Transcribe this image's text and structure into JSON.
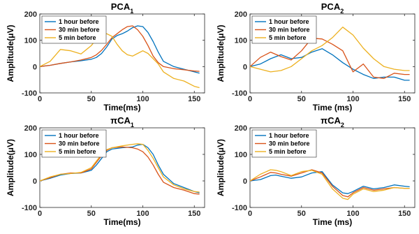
{
  "colors": {
    "s1": "#0072BD",
    "s2": "#D95319",
    "s3": "#EDB120",
    "axis": "#262626"
  },
  "chart_data": [
    {
      "type": "line",
      "title": "PCA",
      "title_sub": "1",
      "title_prefix": "",
      "xlabel": "Time(ms)",
      "ylabel": "Amplitude(μV)",
      "xlim": [
        0,
        160
      ],
      "ylim": [
        -100,
        200
      ],
      "xticks": [
        "0",
        "50",
        "100",
        "150"
      ],
      "yticks": [
        "-100",
        "0",
        "100",
        "200"
      ],
      "legend": "top-left",
      "x": [
        0,
        10,
        20,
        30,
        40,
        50,
        55,
        60,
        65,
        70,
        75,
        80,
        85,
        90,
        95,
        100,
        105,
        110,
        115,
        120,
        130,
        140,
        150,
        155
      ],
      "series": [
        {
          "name": "1 hour before",
          "values": [
            0,
            5,
            12,
            18,
            22,
            28,
            35,
            50,
            75,
            105,
            118,
            125,
            135,
            148,
            155,
            152,
            130,
            95,
            55,
            20,
            0,
            -10,
            -20,
            -25
          ]
        },
        {
          "name": "30 min before",
          "values": [
            0,
            5,
            12,
            18,
            25,
            35,
            45,
            62,
            85,
            110,
            125,
            140,
            152,
            155,
            140,
            115,
            80,
            40,
            15,
            0,
            -8,
            -12,
            -17,
            -18
          ]
        },
        {
          "name": "5 min before",
          "values": [
            0,
            20,
            65,
            60,
            48,
            80,
            105,
            118,
            125,
            115,
            85,
            60,
            45,
            40,
            50,
            60,
            50,
            30,
            10,
            -20,
            -45,
            -55,
            -75,
            -80
          ]
        }
      ]
    },
    {
      "type": "line",
      "title": "PCA",
      "title_sub": "2",
      "title_prefix": "",
      "xlabel": "Time (ms)",
      "ylabel": "Amplitude(μV)",
      "xlim": [
        0,
        160
      ],
      "ylim": [
        -100,
        200
      ],
      "xticks": [
        "0",
        "50",
        "100",
        "150"
      ],
      "yticks": [
        "-100",
        "0",
        "100",
        "200"
      ],
      "legend": "top-left",
      "x": [
        0,
        10,
        20,
        30,
        40,
        50,
        60,
        70,
        80,
        90,
        100,
        110,
        120,
        130,
        140,
        150,
        155
      ],
      "series": [
        {
          "name": "1 hour before",
          "values": [
            0,
            10,
            30,
            45,
            30,
            35,
            55,
            68,
            45,
            15,
            -10,
            -30,
            -45,
            -40,
            -40,
            -52,
            -52
          ]
        },
        {
          "name": "30 min before",
          "values": [
            0,
            35,
            55,
            38,
            25,
            60,
            108,
            105,
            85,
            60,
            -20,
            10,
            -40,
            -45,
            -25,
            -30,
            -30
          ]
        },
        {
          "name": "5 min before",
          "values": [
            0,
            -10,
            -20,
            -15,
            0,
            30,
            60,
            80,
            110,
            150,
            120,
            70,
            30,
            0,
            -10,
            -15,
            -15
          ]
        }
      ]
    },
    {
      "type": "line",
      "title": "CA",
      "title_sub": "1",
      "title_prefix": "π",
      "xlabel": "Time(ms)",
      "ylabel": "Amplitude(μV)",
      "xlim": [
        0,
        160
      ],
      "ylim": [
        -100,
        200
      ],
      "xticks": [
        "0",
        "50",
        "100",
        "150"
      ],
      "yticks": [
        "-100",
        "0",
        "100",
        "200"
      ],
      "legend": "top-left",
      "x": [
        0,
        10,
        20,
        30,
        40,
        50,
        55,
        60,
        65,
        70,
        80,
        90,
        95,
        100,
        105,
        110,
        115,
        120,
        130,
        140,
        150,
        155
      ],
      "series": [
        {
          "name": "1 hour before",
          "values": [
            0,
            10,
            22,
            28,
            30,
            40,
            60,
            85,
            110,
            120,
            125,
            128,
            135,
            138,
            125,
            100,
            60,
            25,
            -10,
            -25,
            -40,
            -45
          ]
        },
        {
          "name": "30 min before",
          "values": [
            0,
            12,
            25,
            30,
            30,
            45,
            70,
            95,
            115,
            125,
            128,
            125,
            120,
            110,
            90,
            60,
            25,
            -5,
            -25,
            -35,
            -48,
            -50
          ]
        },
        {
          "name": "5 min before",
          "values": [
            0,
            15,
            25,
            28,
            32,
            50,
            75,
            100,
            118,
            125,
            132,
            138,
            140,
            138,
            115,
            85,
            50,
            15,
            -15,
            -30,
            -40,
            -42
          ]
        }
      ]
    },
    {
      "type": "line",
      "title": "CA",
      "title_sub": "2",
      "title_prefix": "π",
      "xlabel": "Time (ms)",
      "ylabel": "Amplitude(μV)",
      "xlim": [
        0,
        160
      ],
      "ylim": [
        -100,
        200
      ],
      "xticks": [
        "0",
        "50",
        "100",
        "150"
      ],
      "yticks": [
        "-100",
        "0",
        "100",
        "200"
      ],
      "legend": "top-left",
      "x": [
        0,
        10,
        20,
        25,
        30,
        40,
        50,
        60,
        70,
        80,
        90,
        95,
        100,
        110,
        120,
        130,
        140,
        150,
        155
      ],
      "series": [
        {
          "name": "1 hour before",
          "values": [
            0,
            5,
            20,
            22,
            18,
            10,
            15,
            30,
            35,
            -15,
            -45,
            -48,
            -40,
            -20,
            -30,
            -25,
            -15,
            -20,
            -22
          ]
        },
        {
          "name": "30 min before",
          "values": [
            0,
            15,
            32,
            30,
            25,
            18,
            30,
            42,
            30,
            -20,
            -55,
            -60,
            -45,
            -25,
            -35,
            -30,
            -25,
            -28,
            -28
          ]
        },
        {
          "name": "5 min before",
          "values": [
            0,
            25,
            42,
            40,
            35,
            20,
            35,
            40,
            25,
            -30,
            -65,
            -70,
            -50,
            -30,
            -40,
            -35,
            -25,
            -28,
            -28
          ]
        }
      ]
    }
  ]
}
